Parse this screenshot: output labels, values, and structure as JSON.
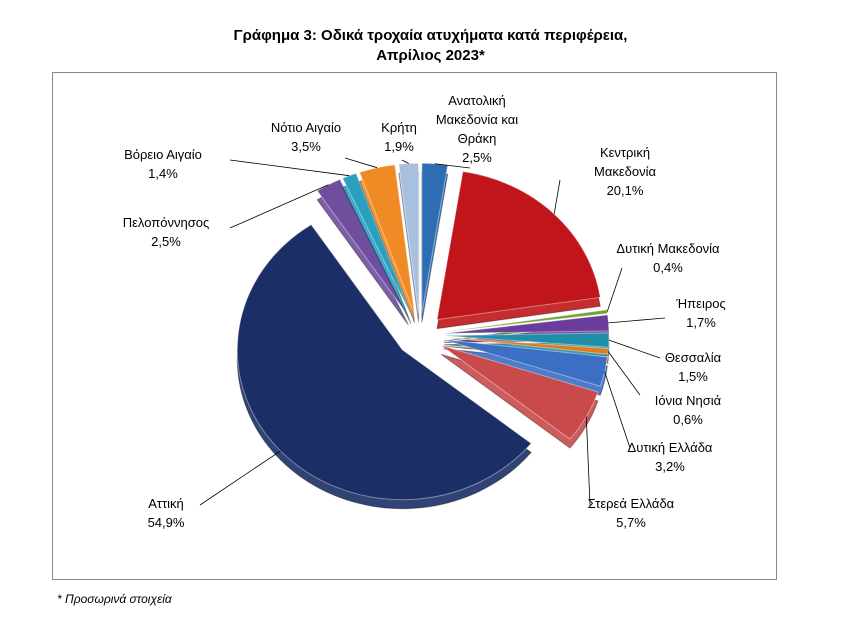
{
  "chart_data": {
    "type": "pie",
    "title": "Γράφημα 3: Οδικά τροχαία ατυχήματα κατά περιφέρεια, Απρίλιος 2023*",
    "categories": [
      "Ανατολική Μακεδονία και Θράκη",
      "Κεντρική Μακεδονία",
      "Δυτική Μακεδονία",
      "Ήπειρος",
      "Θεσσαλία",
      "Ιόνια Νησιά",
      "Δυτική Ελλάδα",
      "Στερεά Ελλάδα",
      "Αττική",
      "Πελοπόννησος",
      "Βόρειο Αιγαίο",
      "Νότιο Αιγαίο",
      "Κρήτη"
    ],
    "values": [
      2.5,
      20.1,
      0.4,
      1.7,
      1.5,
      0.6,
      3.2,
      5.7,
      54.9,
      2.5,
      1.4,
      3.5,
      1.9
    ],
    "value_labels": [
      "2,5%",
      "20,1%",
      "0,4%",
      "1,7%",
      "1,5%",
      "0,6%",
      "3,2%",
      "5,7%",
      "54,9%",
      "2,5%",
      "1,4%",
      "3,5%",
      "1,9%"
    ],
    "colors": [
      "#2f6db3",
      "#c0161b",
      "#77a033",
      "#6a3d9a",
      "#1f8fa8",
      "#e07a1f",
      "#3a6fc4",
      "#c94a4a",
      "#1b2f66",
      "#6f4ea0",
      "#2aa0c0",
      "#f08a24",
      "#a9bfe0"
    ],
    "footnote": "* Προσωρινά στοιχεία"
  }
}
